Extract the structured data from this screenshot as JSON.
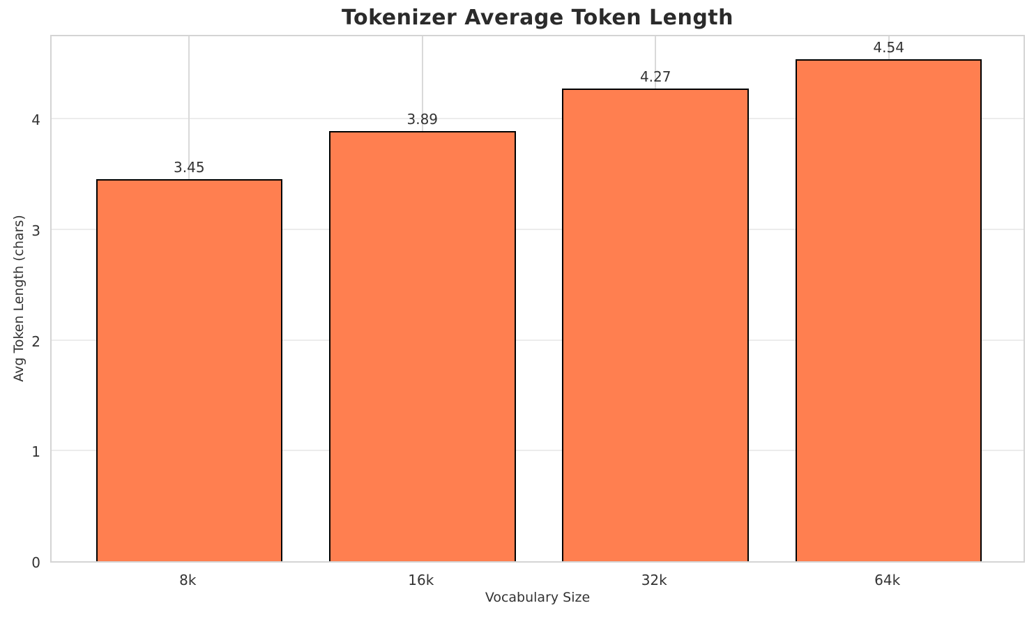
{
  "title": "Tokenizer Average Token Length",
  "chart_data": {
    "type": "bar",
    "title": "Tokenizer Average Token Length",
    "xlabel": "Vocabulary Size",
    "ylabel": "Avg Token Length (chars)",
    "categories": [
      "8k",
      "16k",
      "32k",
      "64k"
    ],
    "values": [
      3.45,
      3.89,
      4.27,
      4.54
    ],
    "value_labels": [
      "3.45",
      "3.89",
      "4.27",
      "4.54"
    ],
    "yticks": [
      0,
      1,
      2,
      3,
      4
    ],
    "ylim": [
      0,
      4.77
    ],
    "xlim": [
      -0.59,
      3.59
    ],
    "bar_width_fraction": 0.8,
    "grid": true,
    "legend": "none",
    "colors": {
      "bar_fill": "#FF7F50",
      "bar_edge": "#000000",
      "grid_horizontal": "#ececec",
      "grid_vertical": "#d9d9d9",
      "spine": "#d4d4d4",
      "tick_text": "#333333",
      "title_text": "#2b2b2b",
      "background": "#ffffff"
    }
  }
}
